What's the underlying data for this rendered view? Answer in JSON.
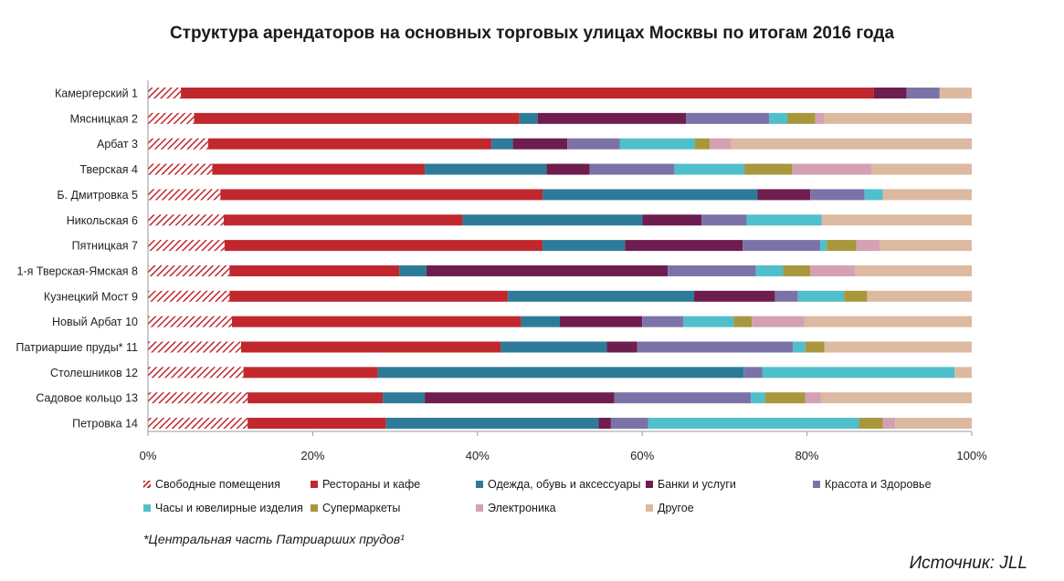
{
  "chart_data": {
    "type": "bar",
    "orientation": "horizontal",
    "stacked": "percent",
    "title": "Структура арендаторов на основных торговых улицах Москвы по итогам 2016 года",
    "categories": [
      "Камергерский 1",
      "Мясницкая 2",
      "Арбат 3",
      "Тверская 4",
      "Б. Дмитровка 5",
      "Никольская 6",
      "Пятницкая 7",
      "1-я Тверская-Ямская 8",
      "Кузнецкий Мост 9",
      "Новый Арбат 10",
      "Патриаршие пруды* 11",
      "Столешников 12",
      "Садовое кольцо 13",
      "Петровка 14"
    ],
    "xlim": [
      0,
      100
    ],
    "xticks": [
      "0%",
      "20%",
      "40%",
      "60%",
      "80%",
      "100%"
    ],
    "grid": false,
    "legend_position": "bottom",
    "series": [
      {
        "name": "Свободные помещения",
        "color": "#c0282e",
        "pattern": "hatch",
        "values": [
          4.0,
          5.6,
          7.3,
          7.8,
          8.8,
          9.2,
          9.3,
          9.9,
          9.9,
          10.2,
          11.3,
          11.6,
          12.1,
          12.1
        ]
      },
      {
        "name": "Рестораны и кафе",
        "color": "#c0282e",
        "values": [
          84.1,
          39.5,
          34.4,
          25.8,
          39.1,
          29.0,
          38.6,
          20.6,
          33.8,
          35.1,
          31.5,
          16.3,
          16.4,
          16.8
        ]
      },
      {
        "name": "Одежда, обувь и аксессуары",
        "color": "#2e7b99",
        "values": [
          0.0,
          2.2,
          2.6,
          14.8,
          26.1,
          21.8,
          10.0,
          3.3,
          22.6,
          4.7,
          12.9,
          44.4,
          5.1,
          25.8
        ]
      },
      {
        "name": "Банки и услуги",
        "color": "#6e1d4f",
        "values": [
          4.0,
          18.0,
          6.6,
          5.2,
          6.4,
          7.2,
          14.3,
          29.3,
          9.8,
          10.0,
          3.7,
          0.0,
          23.0,
          1.5
        ]
      },
      {
        "name": "Красота и Здоровье",
        "color": "#7b73a8",
        "values": [
          4.0,
          10.1,
          6.4,
          10.3,
          6.6,
          5.5,
          9.4,
          10.7,
          2.8,
          5.0,
          18.9,
          2.3,
          16.6,
          4.5
        ]
      },
      {
        "name": "Часы и ювелирные изделия",
        "color": "#4fbfcc",
        "values": [
          0.0,
          2.2,
          9.1,
          8.5,
          2.2,
          9.1,
          0.8,
          3.3,
          5.6,
          6.1,
          1.5,
          23.3,
          1.7,
          25.6
        ]
      },
      {
        "name": "Супермаркеты",
        "color": "#a8973d",
        "values": [
          0.0,
          3.4,
          1.8,
          5.8,
          0.0,
          0.0,
          3.6,
          3.3,
          2.8,
          2.2,
          2.3,
          0.0,
          4.9,
          2.9
        ]
      },
      {
        "name": "Электроника",
        "color": "#d4a0b4",
        "values": [
          0.0,
          1.1,
          2.6,
          9.6,
          0.0,
          0.0,
          2.8,
          5.4,
          0.0,
          6.4,
          0.0,
          0.0,
          1.9,
          1.5
        ]
      },
      {
        "name": "Другое",
        "color": "#dcb9a1",
        "values": [
          3.9,
          17.9,
          29.2,
          12.2,
          10.8,
          18.2,
          11.2,
          14.2,
          12.7,
          20.3,
          17.9,
          2.1,
          18.3,
          9.3
        ]
      }
    ]
  },
  "footnote": "*Центральная часть Патриарших прудов¹",
  "source": "Источник: JLL"
}
